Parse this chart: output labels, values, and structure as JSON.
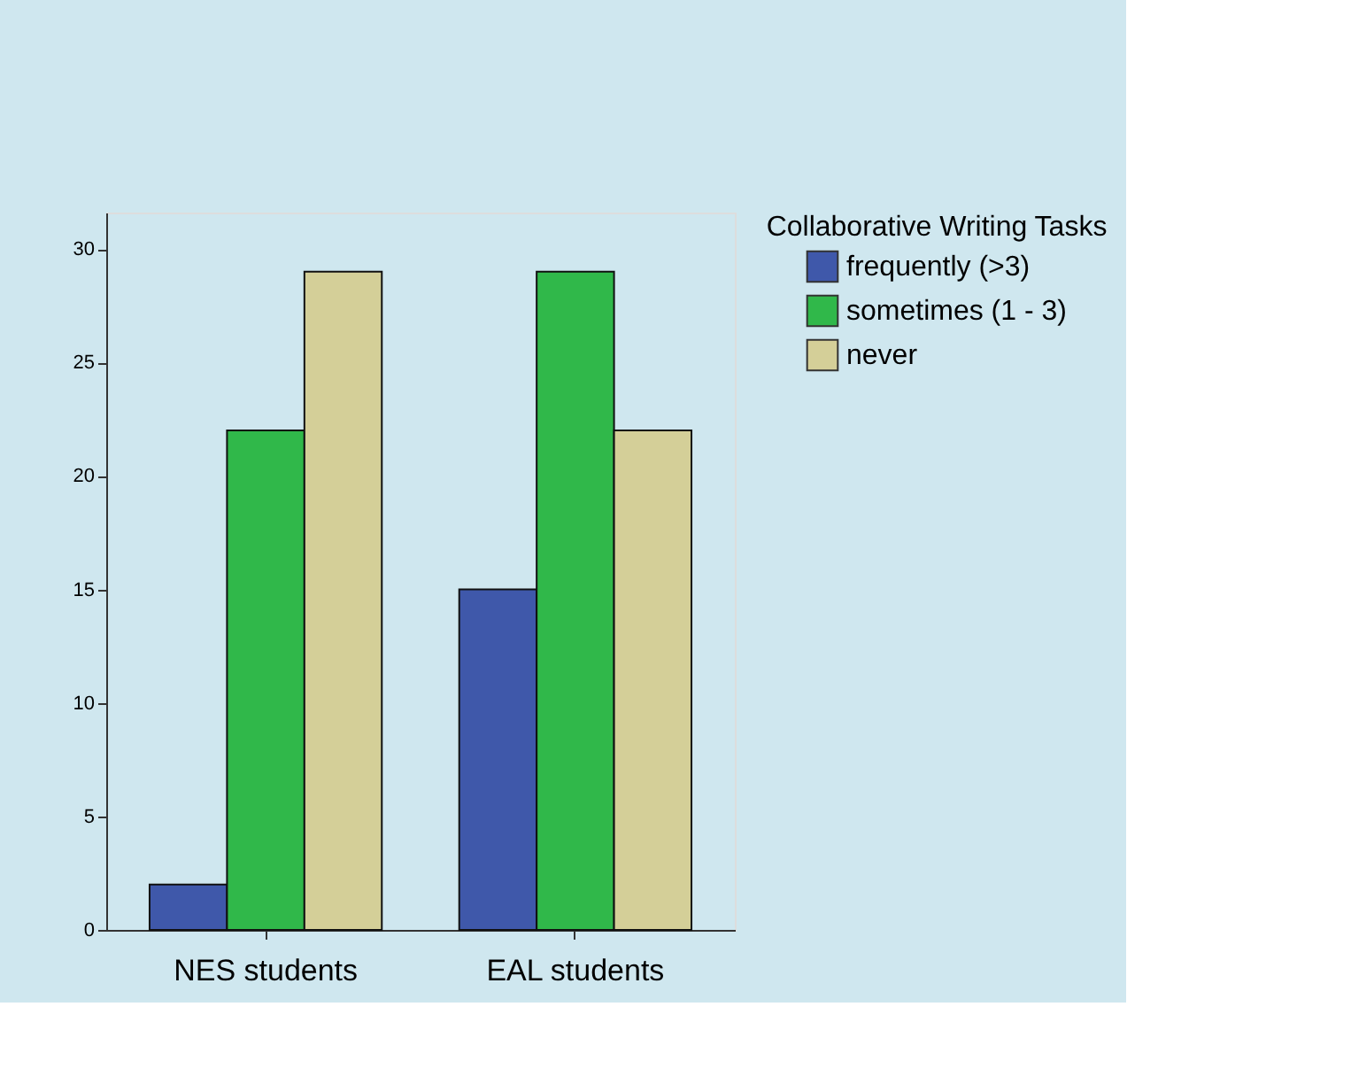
{
  "chart_data": {
    "type": "bar",
    "categories": [
      "NES students",
      "EAL students"
    ],
    "legend_title": "Collaborative Writing Tasks",
    "series": [
      {
        "name": "frequently (>3)",
        "color": "#3f58aa",
        "values": [
          2,
          15
        ]
      },
      {
        "name": "sometimes (1 - 3)",
        "color": "#30b84a",
        "values": [
          22,
          29
        ]
      },
      {
        "name": "never",
        "color": "#d4cf98",
        "values": [
          29,
          22
        ]
      }
    ],
    "ylim": [
      0,
      31.6
    ],
    "yticks": [
      0,
      5,
      10,
      15,
      20,
      25,
      30
    ],
    "grid": false,
    "legend": "top right"
  }
}
